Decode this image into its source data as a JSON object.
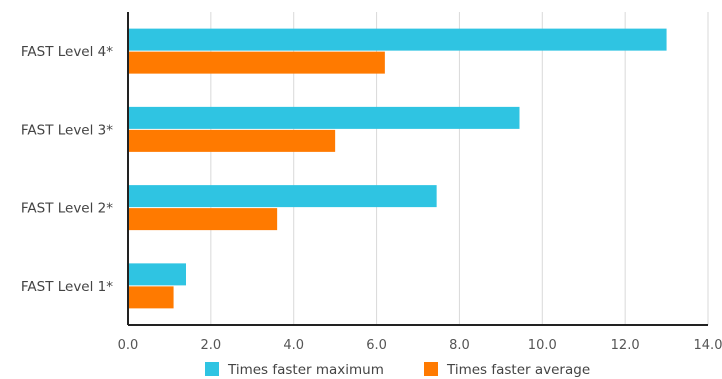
{
  "chart_data": {
    "type": "bar",
    "orientation": "horizontal",
    "title": "",
    "xlabel": "",
    "ylabel": "",
    "categories": [
      "FAST Level 4*",
      "FAST Level 3*",
      "FAST Level 2*",
      "FAST Level 1*"
    ],
    "series": [
      {
        "name": "Times faster maximum",
        "color": "#2fc4e2",
        "values": [
          13.0,
          9.45,
          7.45,
          1.4
        ]
      },
      {
        "name": "Times faster average",
        "color": "#ff7a00",
        "values": [
          6.2,
          5.0,
          3.6,
          1.1
        ]
      }
    ],
    "xlim": [
      0,
      14
    ],
    "xticks": [
      "0.0",
      "2.0",
      "4.0",
      "6.0",
      "8.0",
      "10.0",
      "12.0",
      "14.0"
    ],
    "grid": "vertical",
    "legend": "bottom-center"
  }
}
